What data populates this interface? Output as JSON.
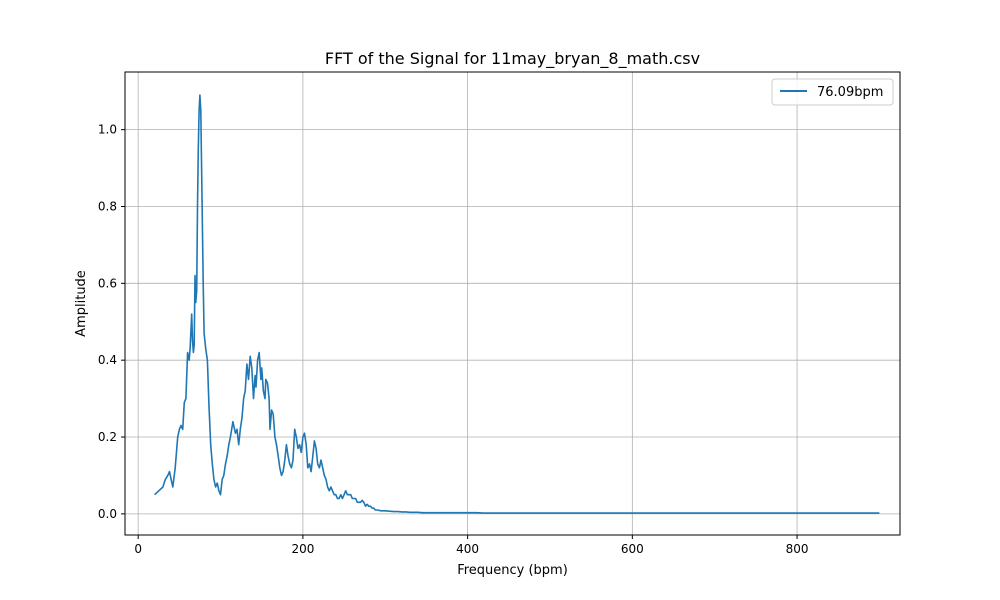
{
  "chart_data": {
    "type": "line",
    "title": "FFT of the Signal for 11may_bryan_8_math.csv",
    "xlabel": "Frequency (bpm)",
    "ylabel": "Amplitude",
    "xlim": [
      -16,
      925
    ],
    "ylim": [
      -0.055,
      1.15
    ],
    "x_ticks": [
      0,
      200,
      400,
      600,
      800
    ],
    "y_ticks": [
      0.0,
      0.2,
      0.4,
      0.6,
      0.8,
      1.0
    ],
    "x_tick_labels": [
      "0",
      "200",
      "400",
      "600",
      "800"
    ],
    "y_tick_labels": [
      "0.0",
      "0.2",
      "0.4",
      "0.6",
      "0.8",
      "1.0"
    ],
    "grid": true,
    "legend_position": "top-right",
    "series": [
      {
        "name": "76.09bpm",
        "color": "#1f77b4",
        "x": [
          20,
          25,
          30,
          33,
          36,
          38,
          40,
          42,
          45,
          48,
          50,
          52,
          54,
          56,
          58,
          60,
          62,
          63,
          65,
          66,
          67,
          68,
          69,
          70,
          71,
          72,
          73,
          74,
          75,
          76,
          77,
          78,
          79,
          80,
          82,
          84,
          86,
          88,
          90,
          92,
          94,
          96,
          98,
          100,
          102,
          104,
          106,
          108,
          110,
          112,
          115,
          118,
          120,
          122,
          124,
          126,
          128,
          130,
          132,
          134,
          136,
          138,
          140,
          142,
          143,
          145,
          147,
          149,
          150,
          152,
          154,
          155,
          157,
          159,
          160,
          162,
          164,
          166,
          168,
          170,
          172,
          174,
          176,
          178,
          180,
          182,
          184,
          186,
          188,
          190,
          192,
          194,
          196,
          198,
          200,
          202,
          204,
          206,
          208,
          210,
          212,
          214,
          216,
          218,
          220,
          222,
          224,
          226,
          228,
          230,
          232,
          234,
          236,
          238,
          240,
          242,
          244,
          246,
          248,
          250,
          252,
          254,
          256,
          258,
          260,
          262,
          264,
          266,
          268,
          270,
          272,
          274,
          276,
          278,
          280,
          282,
          284,
          286,
          288,
          290,
          295,
          300,
          305,
          310,
          315,
          320,
          325,
          330,
          335,
          340,
          345,
          350,
          355,
          360,
          365,
          370,
          380,
          390,
          400,
          410,
          420,
          430,
          450,
          500,
          600,
          700,
          800,
          900
        ],
        "values": [
          0.05,
          0.06,
          0.07,
          0.09,
          0.1,
          0.11,
          0.09,
          0.07,
          0.12,
          0.2,
          0.22,
          0.23,
          0.22,
          0.29,
          0.3,
          0.42,
          0.4,
          0.43,
          0.52,
          0.45,
          0.42,
          0.44,
          0.62,
          0.55,
          0.58,
          0.8,
          0.95,
          1.05,
          1.09,
          1.05,
          0.9,
          0.75,
          0.6,
          0.47,
          0.43,
          0.4,
          0.28,
          0.18,
          0.13,
          0.09,
          0.07,
          0.08,
          0.06,
          0.05,
          0.09,
          0.1,
          0.13,
          0.15,
          0.18,
          0.2,
          0.24,
          0.21,
          0.22,
          0.18,
          0.22,
          0.25,
          0.3,
          0.32,
          0.39,
          0.35,
          0.41,
          0.38,
          0.3,
          0.36,
          0.33,
          0.4,
          0.42,
          0.35,
          0.38,
          0.32,
          0.3,
          0.35,
          0.34,
          0.3,
          0.22,
          0.27,
          0.26,
          0.2,
          0.18,
          0.15,
          0.12,
          0.1,
          0.11,
          0.14,
          0.18,
          0.15,
          0.13,
          0.12,
          0.14,
          0.22,
          0.2,
          0.17,
          0.18,
          0.16,
          0.2,
          0.21,
          0.18,
          0.12,
          0.13,
          0.11,
          0.15,
          0.19,
          0.17,
          0.13,
          0.12,
          0.14,
          0.12,
          0.1,
          0.09,
          0.07,
          0.06,
          0.07,
          0.06,
          0.05,
          0.05,
          0.04,
          0.04,
          0.05,
          0.04,
          0.05,
          0.06,
          0.05,
          0.05,
          0.05,
          0.04,
          0.04,
          0.04,
          0.03,
          0.03,
          0.03,
          0.035,
          0.03,
          0.02,
          0.025,
          0.02,
          0.02,
          0.015,
          0.015,
          0.01,
          0.01,
          0.008,
          0.008,
          0.007,
          0.006,
          0.006,
          0.005,
          0.005,
          0.004,
          0.004,
          0.004,
          0.003,
          0.003,
          0.003,
          0.003,
          0.003,
          0.003,
          0.003,
          0.003,
          0.003,
          0.003,
          0.002,
          0.002,
          0.002,
          0.002,
          0.002,
          0.002,
          0.002,
          0.002
        ]
      }
    ]
  }
}
